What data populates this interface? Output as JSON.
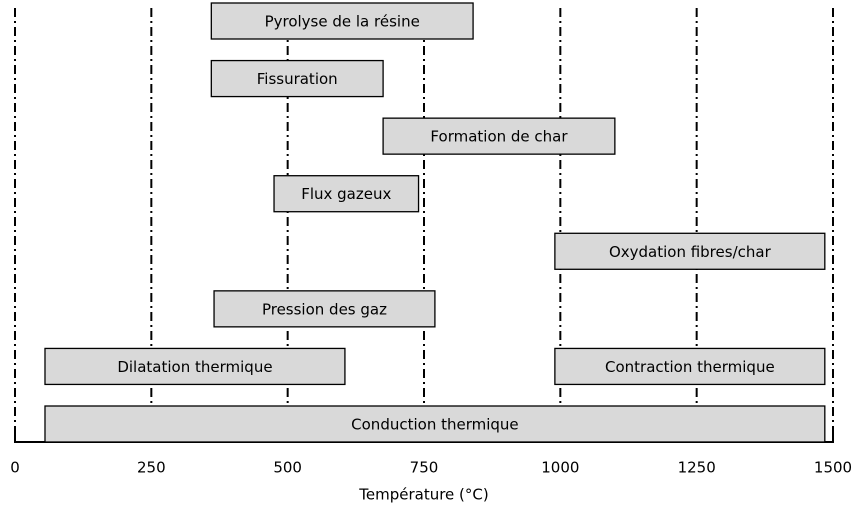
{
  "chart_data": {
    "type": "range",
    "xlabel": "Température (°C)",
    "xlim": [
      0,
      1500
    ],
    "xticks": [
      0,
      250,
      500,
      750,
      1000,
      1250,
      1500
    ],
    "xminor_ticks": [
      125,
      375,
      625,
      875,
      1125,
      1375
    ],
    "grid": true,
    "color": "#d9d9d9",
    "rows": [
      [
        {
          "label": "Pyrolyse de la résine",
          "start": 360,
          "end": 840
        }
      ],
      [
        {
          "label": "Fissuration",
          "start": 360,
          "end": 675
        }
      ],
      [
        {
          "label": "Formation de char",
          "start": 675,
          "end": 1100
        }
      ],
      [
        {
          "label": "Flux gazeux",
          "start": 475,
          "end": 740
        }
      ],
      [
        {
          "label": "Oxydation fibres/char",
          "start": 990,
          "end": 1485
        }
      ],
      [
        {
          "label": "Pression des gaz",
          "start": 365,
          "end": 770
        }
      ],
      [
        {
          "label": "Dilatation thermique",
          "start": 55,
          "end": 605
        },
        {
          "label": "Contraction thermique",
          "start": 990,
          "end": 1485
        }
      ],
      [
        {
          "label": "Conduction thermique",
          "start": 55,
          "end": 1485
        }
      ]
    ]
  }
}
